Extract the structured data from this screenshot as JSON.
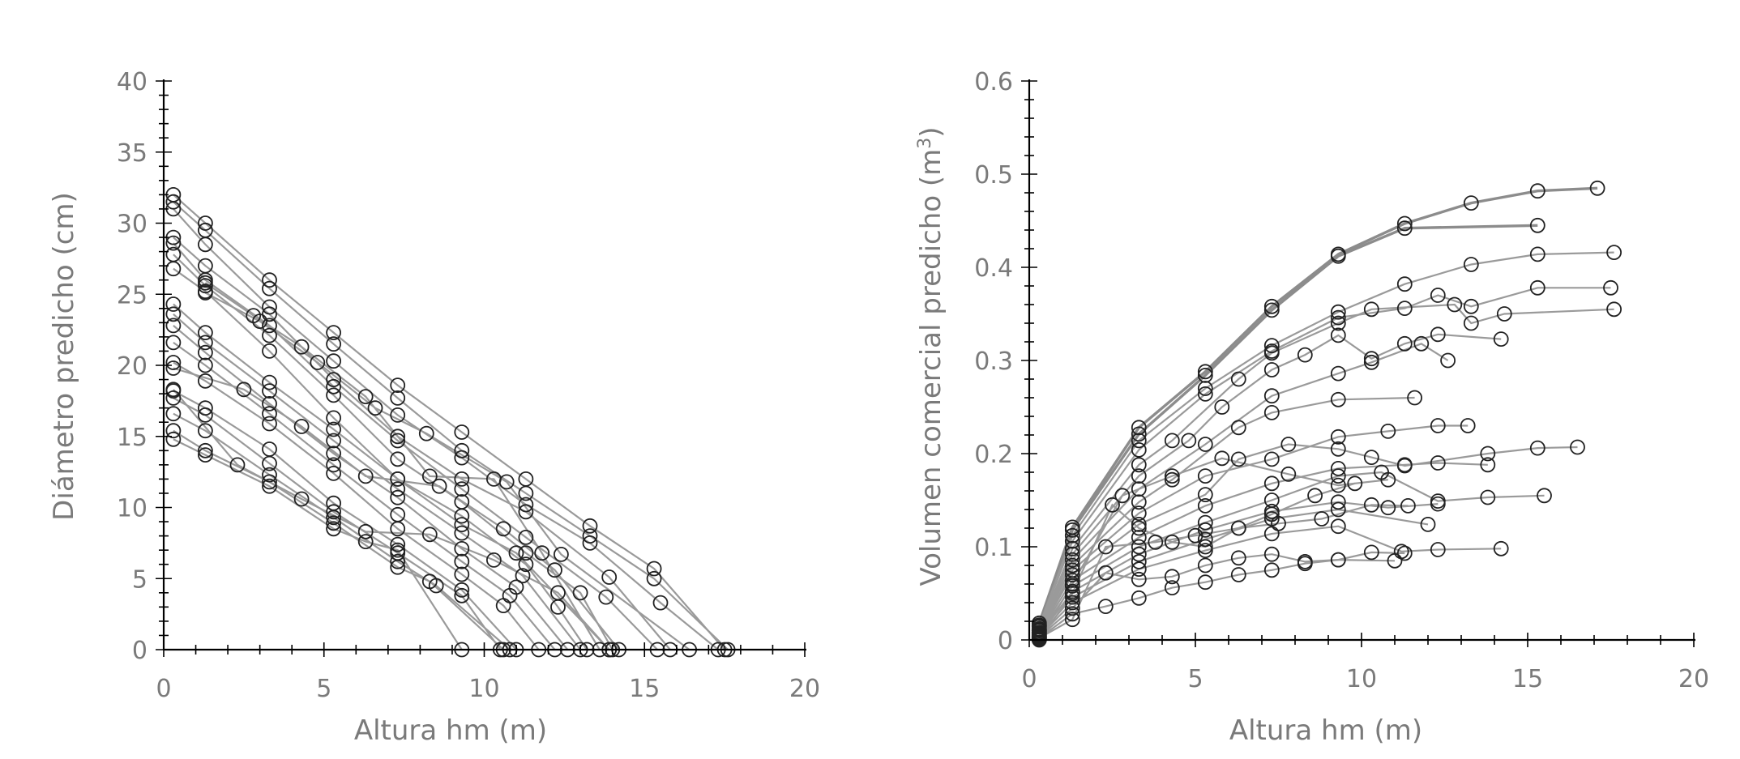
{
  "chart_data": [
    {
      "type": "line",
      "title": "",
      "xlabel": "Altura hm (m)",
      "ylabel": "Diámetro predicho (cm)",
      "xlim": [
        0,
        20
      ],
      "ylim": [
        0,
        40
      ],
      "xticks": [
        "0",
        "5",
        "10",
        "15",
        "20"
      ],
      "yticks": [
        "0",
        "5",
        "10",
        "15",
        "20",
        "25",
        "30",
        "35",
        "40"
      ],
      "grid": false,
      "legend": "none",
      "series_style": {
        "line_color": "#9a9a9a",
        "marker": "open-circle",
        "marker_color": "#222222"
      },
      "series": [
        {
          "x": [
            0.3,
            1.3,
            3.3,
            5.3,
            7.3,
            9.3,
            11.3,
            13.3,
            15.3,
            17.5
          ],
          "y": [
            32.0,
            30.0,
            26.0,
            22.3,
            18.6,
            15.3,
            12.0,
            8.7,
            5.7,
            0
          ]
        },
        {
          "x": [
            0.3,
            1.3,
            3.3,
            5.3,
            7.3,
            9.3,
            11.3,
            13.3,
            15.3,
            17.6
          ],
          "y": [
            31.5,
            29.5,
            25.4,
            21.5,
            17.7,
            14.0,
            11.0,
            8.0,
            5.0,
            0
          ]
        },
        {
          "x": [
            0.3,
            1.3,
            3.3,
            5.3,
            7.3,
            9.3,
            11.3,
            13.3,
            15.5,
            17.3
          ],
          "y": [
            31.0,
            28.5,
            24.1,
            20.3,
            16.5,
            13.5,
            10.2,
            7.5,
            3.3,
            0
          ]
        },
        {
          "x": [
            0.3,
            1.3,
            3.3,
            5.3,
            7.3,
            9.3,
            11.3,
            13.9,
            15.8
          ],
          "y": [
            29.0,
            27.0,
            23.6,
            19.0,
            15.0,
            12.0,
            9.7,
            5.1,
            0
          ]
        },
        {
          "x": [
            0.3,
            1.3,
            3.3,
            5.3,
            7.3,
            9.3,
            11.3,
            13.8,
            15.4
          ],
          "y": [
            28.6,
            26.0,
            22.8,
            18.5,
            14.7,
            11.3,
            7.9,
            3.7,
            0
          ]
        },
        {
          "x": [
            0.3,
            1.3,
            3.3,
            5.3,
            7.3,
            9.3,
            11.3,
            13.0,
            14.0
          ],
          "y": [
            27.8,
            25.6,
            22.1,
            17.9,
            13.4,
            10.4,
            6.8,
            4.0,
            0
          ]
        },
        {
          "x": [
            0.3,
            1.3,
            3.3,
            5.3,
            7.3,
            9.3,
            11.3,
            12.3,
            13.2
          ],
          "y": [
            26.8,
            25.2,
            21.0,
            16.3,
            12.0,
            9.4,
            6.0,
            3.0,
            0
          ]
        },
        {
          "x": [
            0.3,
            1.3,
            3.3,
            5.3,
            7.3,
            9.3,
            11.0,
            13.9
          ],
          "y": [
            24.3,
            22.3,
            18.8,
            15.5,
            12.0,
            8.8,
            6.8,
            0
          ]
        },
        {
          "x": [
            0.3,
            1.3,
            3.3,
            5.3,
            7.3,
            9.3,
            11.2,
            13.0
          ],
          "y": [
            23.6,
            21.6,
            18.2,
            14.7,
            11.3,
            8.2,
            5.2,
            0
          ]
        },
        {
          "x": [
            0.3,
            1.3,
            3.3,
            5.3,
            7.3,
            9.3,
            11.0,
            12.6
          ],
          "y": [
            22.8,
            20.9,
            17.3,
            13.8,
            10.7,
            7.1,
            4.4,
            0
          ]
        },
        {
          "x": [
            0.3,
            1.3,
            3.3,
            5.3,
            7.3,
            9.3,
            10.8,
            12.2
          ],
          "y": [
            21.6,
            20.0,
            16.6,
            13.0,
            9.5,
            6.2,
            3.8,
            0
          ]
        },
        {
          "x": [
            0.3,
            1.3,
            3.3,
            5.3,
            7.3,
            9.3,
            10.6,
            11.7
          ],
          "y": [
            20.2,
            18.9,
            15.9,
            12.4,
            8.5,
            5.3,
            3.1,
            0
          ]
        },
        {
          "x": [
            0.3,
            1.3,
            3.3,
            5.3,
            7.3,
            9.3,
            11.0
          ],
          "y": [
            18.2,
            17.0,
            14.1,
            10.3,
            7.4,
            4.2,
            0
          ]
        },
        {
          "x": [
            0.3,
            1.3,
            3.3,
            5.3,
            7.3,
            9.3,
            10.5
          ],
          "y": [
            17.7,
            16.5,
            13.1,
            9.7,
            6.8,
            3.8,
            0
          ]
        },
        {
          "x": [
            0.3,
            1.3,
            3.3,
            5.3,
            7.3,
            8.5,
            10.8
          ],
          "y": [
            16.6,
            15.4,
            12.3,
            9.3,
            6.2,
            4.5,
            0
          ]
        },
        {
          "x": [
            0.3,
            1.3,
            3.3,
            5.3,
            7.3,
            8.3,
            10.6
          ],
          "y": [
            15.4,
            14.0,
            11.8,
            8.9,
            5.8,
            4.8,
            0
          ]
        },
        {
          "x": [
            0.3,
            1.3,
            3.3,
            5.3,
            6.3,
            7.3,
            9.3
          ],
          "y": [
            14.8,
            13.7,
            11.5,
            8.5,
            7.6,
            7.0,
            0
          ]
        },
        {
          "x": [
            0.3,
            2.3,
            4.3,
            6.3,
            8.3,
            10.3,
            12.3,
            13.9
          ],
          "y": [
            18.3,
            13.0,
            10.6,
            8.3,
            8.1,
            6.3,
            4.0,
            0
          ]
        },
        {
          "x": [
            0.3,
            2.5,
            4.3,
            6.3,
            8.6,
            10.6,
            12.2,
            14.2
          ],
          "y": [
            19.8,
            18.3,
            15.7,
            12.2,
            11.5,
            8.5,
            5.6,
            0
          ]
        },
        {
          "x": [
            1.3,
            2.8,
            4.3,
            6.3,
            8.3,
            10.3,
            11.8,
            13.6
          ],
          "y": [
            25.8,
            23.5,
            21.3,
            17.8,
            12.2,
            12.0,
            6.8,
            0
          ]
        },
        {
          "x": [
            1.3,
            3.0,
            4.8,
            6.6,
            8.2,
            10.7,
            12.4,
            16.4
          ],
          "y": [
            25.1,
            23.1,
            20.2,
            17.0,
            15.2,
            11.8,
            6.7,
            0
          ]
        }
      ]
    },
    {
      "type": "line",
      "title": "",
      "xlabel": "Altura hm (m)",
      "ylabel": "Volumen comercial predicho (m³)",
      "ylabel_main": "Volumen comercial predicho (m",
      "ylabel_sup": "3",
      "ylabel_end": ")",
      "xlim": [
        0,
        20
      ],
      "ylim": [
        0,
        0.6
      ],
      "xticks": [
        "0",
        "5",
        "10",
        "15",
        "20"
      ],
      "yticks": [
        "0",
        "0.1",
        "0.2",
        "0.3",
        "0.4",
        "0.5",
        "0.6"
      ],
      "grid": false,
      "legend": "none",
      "series_style": {
        "line_color": "#9a9a9a",
        "marker": "open-circle",
        "marker_color": "#222222"
      },
      "series": [
        {
          "x": [
            0.3,
            1.3,
            3.3,
            5.3,
            7.3,
            9.3,
            11.3,
            13.3,
            15.3,
            17.1
          ],
          "y": [
            0.018,
            0.121,
            0.228,
            0.288,
            0.358,
            0.414,
            0.447,
            0.469,
            0.482,
            0.485
          ],
          "strong": true
        },
        {
          "x": [
            0.3,
            1.3,
            3.3,
            5.3,
            7.3,
            9.3,
            11.3,
            15.3
          ],
          "y": [
            0.016,
            0.118,
            0.221,
            0.284,
            0.354,
            0.412,
            0.442,
            0.445
          ],
          "strong": true
        },
        {
          "x": [
            0.3,
            1.3,
            3.3,
            5.3,
            7.3,
            9.3,
            11.3,
            13.3,
            15.3,
            17.6
          ],
          "y": [
            0.015,
            0.112,
            0.214,
            0.27,
            0.316,
            0.352,
            0.382,
            0.403,
            0.414,
            0.416
          ]
        },
        {
          "x": [
            0.3,
            1.3,
            3.3,
            5.3,
            7.3,
            9.3,
            11.3,
            12.3,
            13.3,
            15.3,
            17.5
          ],
          "y": [
            0.014,
            0.106,
            0.204,
            0.264,
            0.31,
            0.346,
            0.356,
            0.37,
            0.358,
            0.378,
            0.378
          ]
        },
        {
          "x": [
            0.3,
            1.3,
            3.3,
            4.3,
            6.3,
            7.3,
            9.3,
            10.3,
            12.8,
            13.3,
            14.3,
            17.6
          ],
          "y": [
            0.012,
            0.098,
            0.188,
            0.214,
            0.28,
            0.308,
            0.34,
            0.355,
            0.36,
            0.34,
            0.35,
            0.355
          ]
        },
        {
          "x": [
            0.3,
            1.3,
            3.3,
            4.8,
            5.8,
            7.3,
            8.3,
            9.3,
            10.3,
            11.3,
            12.3,
            14.2
          ],
          "y": [
            0.011,
            0.092,
            0.176,
            0.214,
            0.25,
            0.29,
            0.306,
            0.327,
            0.302,
            0.318,
            0.328,
            0.323
          ]
        },
        {
          "x": [
            0.3,
            1.3,
            3.3,
            5.3,
            7.3,
            9.3,
            10.3,
            11.8,
            12.6
          ],
          "y": [
            0.01,
            0.086,
            0.162,
            0.21,
            0.262,
            0.286,
            0.298,
            0.318,
            0.3
          ]
        },
        {
          "x": [
            0.3,
            1.3,
            3.3,
            4.3,
            6.3,
            7.3,
            9.3,
            11.6
          ],
          "y": [
            0.01,
            0.08,
            0.148,
            0.172,
            0.228,
            0.244,
            0.258,
            0.26
          ]
        },
        {
          "x": [
            0.3,
            1.3,
            3.3,
            5.3,
            7.3,
            9.3,
            10.8,
            12.3,
            13.2
          ],
          "y": [
            0.008,
            0.075,
            0.136,
            0.176,
            0.194,
            0.218,
            0.224,
            0.23,
            0.23
          ]
        },
        {
          "x": [
            0.3,
            1.3,
            3.3,
            5.3,
            6.3,
            7.8,
            9.3,
            10.3,
            11.3,
            13.8,
            15.3,
            16.5
          ],
          "y": [
            0.008,
            0.07,
            0.124,
            0.156,
            0.194,
            0.21,
            0.205,
            0.196,
            0.187,
            0.2,
            0.206,
            0.207
          ]
        },
        {
          "x": [
            0.3,
            1.3,
            3.3,
            5.3,
            7.3,
            9.3,
            11.3,
            12.3,
            13.8
          ],
          "y": [
            0.007,
            0.064,
            0.11,
            0.144,
            0.168,
            0.184,
            0.188,
            0.19,
            0.188
          ]
        },
        {
          "x": [
            0.3,
            1.3,
            3.3,
            5.3,
            7.3,
            9.3,
            10.6,
            12.3,
            13.8,
            15.5
          ],
          "y": [
            0.006,
            0.058,
            0.1,
            0.126,
            0.15,
            0.176,
            0.18,
            0.149,
            0.153,
            0.155
          ]
        },
        {
          "x": [
            0.3,
            1.3,
            3.3,
            5.3,
            7.3,
            9.3,
            10.8,
            12.3
          ],
          "y": [
            0.005,
            0.052,
            0.092,
            0.118,
            0.138,
            0.148,
            0.142,
            0.146
          ]
        },
        {
          "x": [
            0.3,
            1.3,
            3.3,
            5.3,
            7.3,
            9.3,
            12.0
          ],
          "y": [
            0.004,
            0.046,
            0.084,
            0.108,
            0.13,
            0.14,
            0.124
          ]
        },
        {
          "x": [
            0.3,
            1.3,
            3.3,
            5.3,
            7.3,
            9.3,
            11.2,
            12.3,
            14.2
          ],
          "y": [
            0.004,
            0.04,
            0.076,
            0.096,
            0.114,
            0.122,
            0.095,
            0.097,
            0.098
          ]
        },
        {
          "x": [
            0.3,
            1.3,
            2.3,
            3.3,
            4.3,
            5.3,
            6.3,
            7.3,
            8.3,
            9.3,
            10.3,
            11.3
          ],
          "y": [
            0.003,
            0.034,
            0.072,
            0.065,
            0.068,
            0.08,
            0.088,
            0.092,
            0.084,
            0.086,
            0.094,
            0.093
          ]
        },
        {
          "x": [
            0.3,
            1.3,
            2.3,
            3.3,
            4.3,
            5.3,
            6.3,
            7.3,
            8.3,
            9.3,
            11.0
          ],
          "y": [
            0.002,
            0.028,
            0.036,
            0.045,
            0.056,
            0.062,
            0.07,
            0.075,
            0.082,
            0.086,
            0.085
          ]
        },
        {
          "x": [
            0.3,
            1.3,
            2.3,
            3.8,
            5.0,
            6.3,
            7.5,
            8.8,
            10.3,
            11.4
          ],
          "y": [
            0.002,
            0.022,
            0.1,
            0.105,
            0.112,
            0.12,
            0.125,
            0.13,
            0.145,
            0.144
          ]
        },
        {
          "x": [
            0.3,
            1.3,
            2.8,
            4.3,
            5.8,
            7.8,
            9.3,
            10.8
          ],
          "y": [
            0.001,
            0.06,
            0.155,
            0.176,
            0.195,
            0.178,
            0.166,
            0.172
          ]
        },
        {
          "x": [
            0.3,
            1.3,
            2.5,
            3.3,
            4.3,
            5.3,
            6.3,
            7.3,
            8.6,
            9.8
          ],
          "y": [
            0.0,
            0.05,
            0.145,
            0.12,
            0.105,
            0.1,
            0.12,
            0.135,
            0.155,
            0.168
          ]
        }
      ]
    }
  ]
}
